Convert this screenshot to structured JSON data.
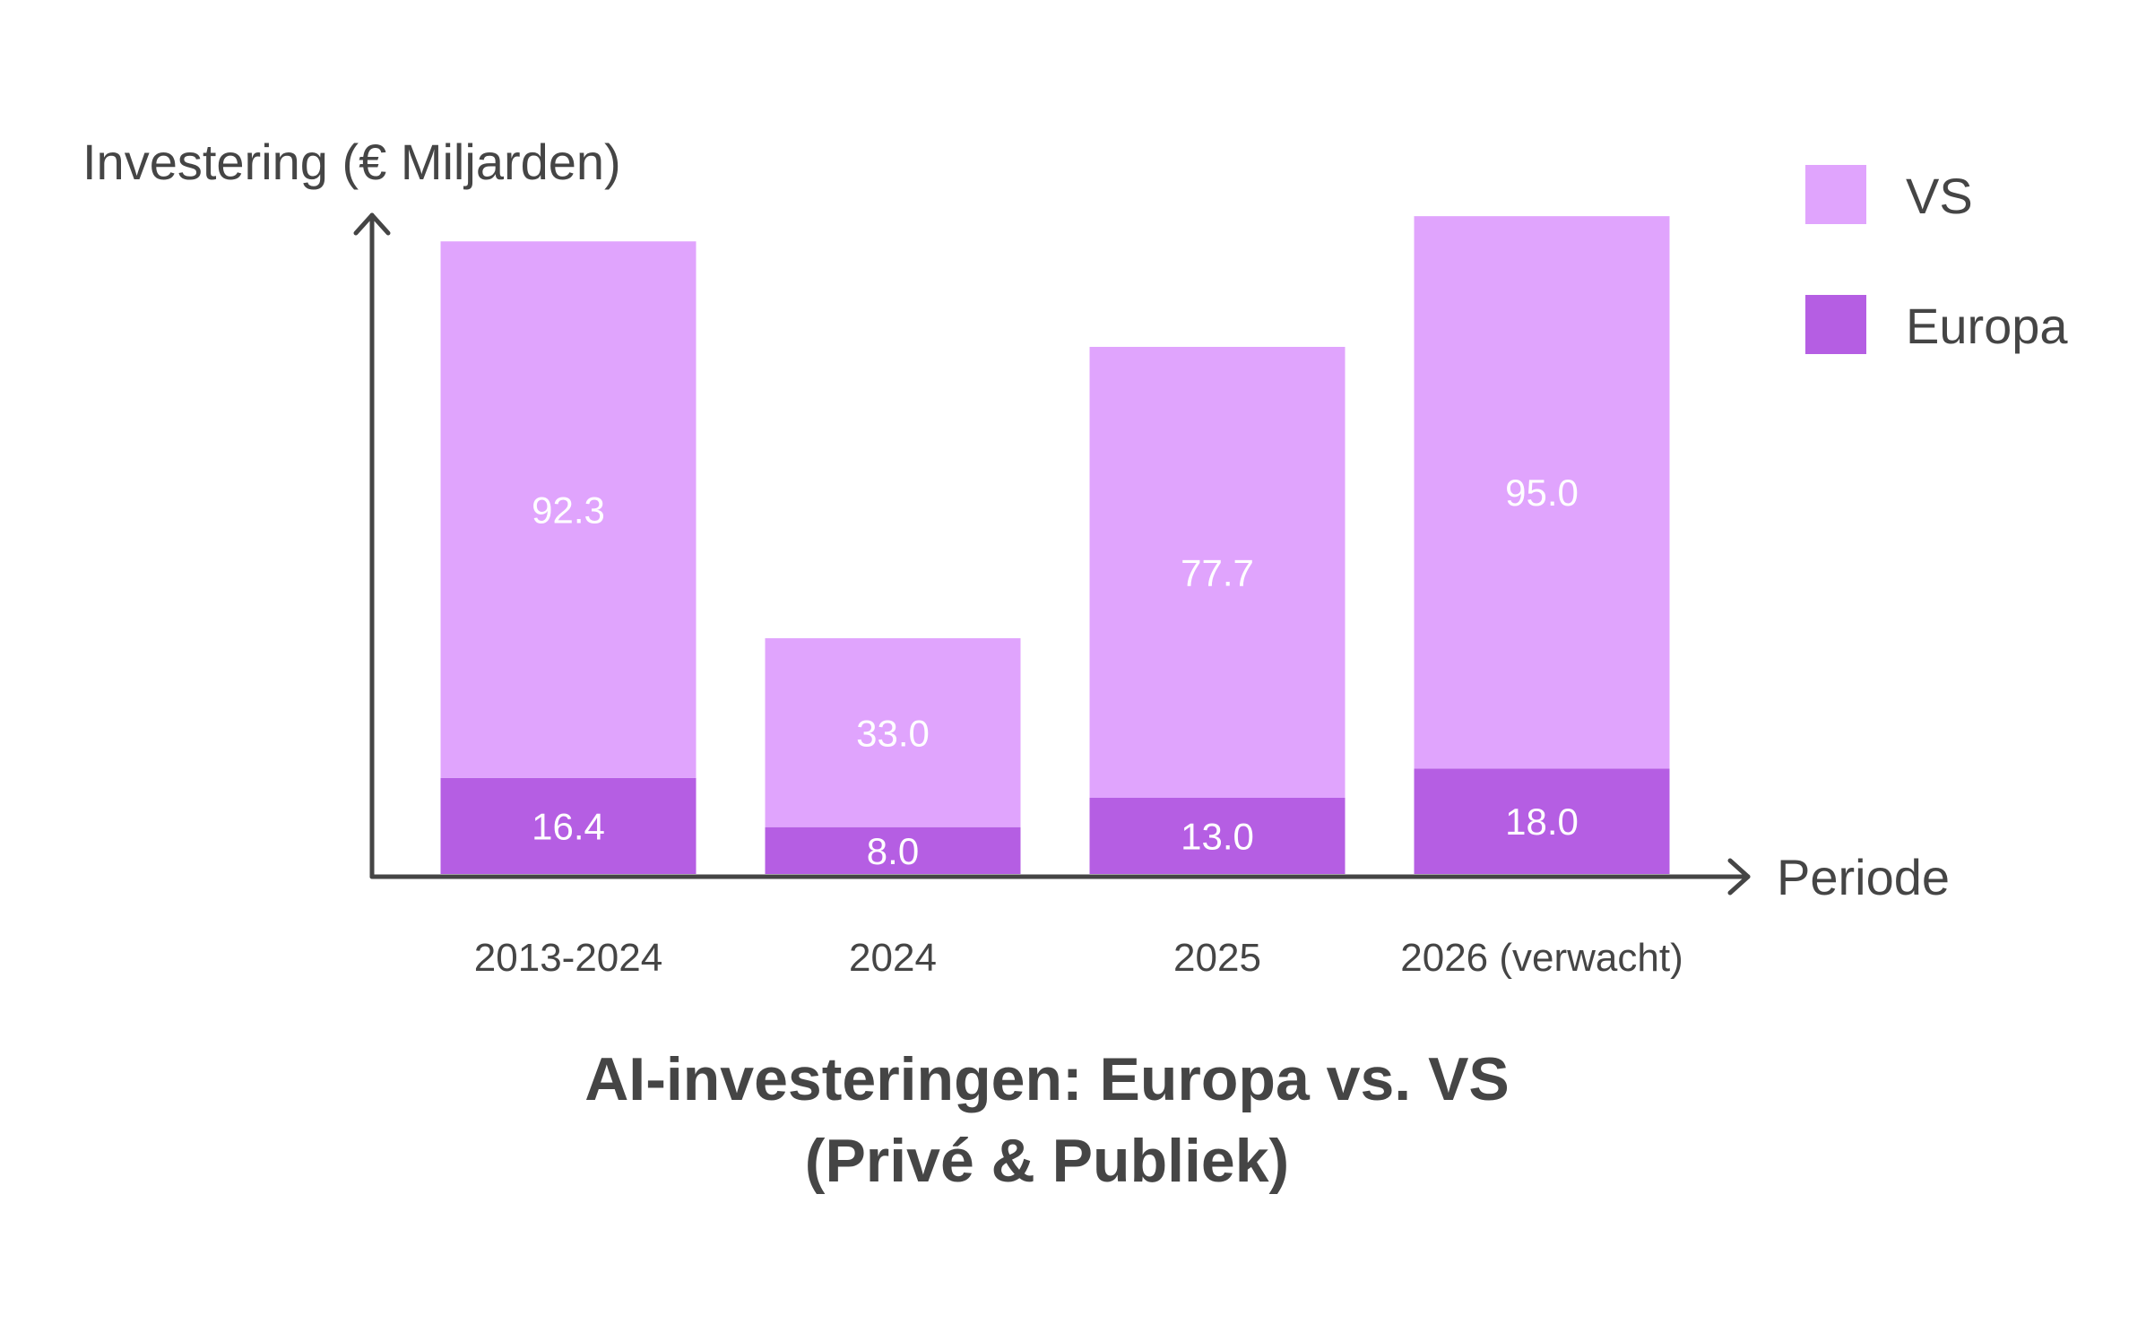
{
  "chart_data": {
    "type": "bar",
    "stacked": true,
    "title": "AI-investeringen: Europa vs. VS (Privé & Publiek)",
    "title_lines": [
      "AI-investeringen: Europa vs. VS",
      "(Privé & Publiek)"
    ],
    "xlabel": "Periode",
    "ylabel": "Investering (€ Miljarden)",
    "categories": [
      "2013-2024",
      "2024",
      "2025",
      "2026 (verwacht)"
    ],
    "series": [
      {
        "name": "Europa",
        "values": [
          16.4,
          8.0,
          13.0,
          18.0
        ],
        "value_labels": [
          "16.4",
          "8.0",
          "13.0",
          "18.0"
        ],
        "color": "#b55ee3"
      },
      {
        "name": "VS",
        "values": [
          92.3,
          33.0,
          77.7,
          95.0
        ],
        "value_labels": [
          "92.3",
          "33.0",
          "77.7",
          "95.0"
        ],
        "color": "#e0a4fd"
      }
    ],
    "ylim": [
      0,
      117
    ],
    "grid": false,
    "legend_position": "top-right",
    "legend_order": [
      "VS",
      "Europa"
    ],
    "axis_color": "#454545"
  }
}
